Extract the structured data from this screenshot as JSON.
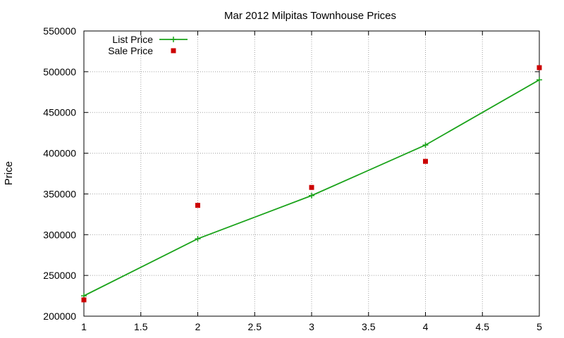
{
  "chart_data": {
    "type": "line",
    "title": "Mar 2012 Milpitas Townhouse Prices",
    "xlabel": "",
    "ylabel": "Price",
    "x": [
      1,
      2,
      3,
      4,
      5
    ],
    "series": [
      {
        "name": "List Price",
        "style": "line+points",
        "marker": "plus",
        "color": "#1aa31a",
        "values": [
          225000,
          295000,
          348000,
          410000,
          490000
        ]
      },
      {
        "name": "Sale Price",
        "style": "points",
        "marker": "square",
        "color": "#cc0000",
        "values": [
          220000,
          336000,
          358000,
          390000,
          505000
        ]
      }
    ],
    "xlim": [
      1,
      5
    ],
    "ylim": [
      200000,
      550000
    ],
    "xticks": [
      "1",
      "1.5",
      "2",
      "2.5",
      "3",
      "3.5",
      "4",
      "4.5",
      "5"
    ],
    "yticks": [
      "200000",
      "250000",
      "300000",
      "350000",
      "400000",
      "450000",
      "500000",
      "550000"
    ],
    "grid": true,
    "legend": "top-left"
  }
}
